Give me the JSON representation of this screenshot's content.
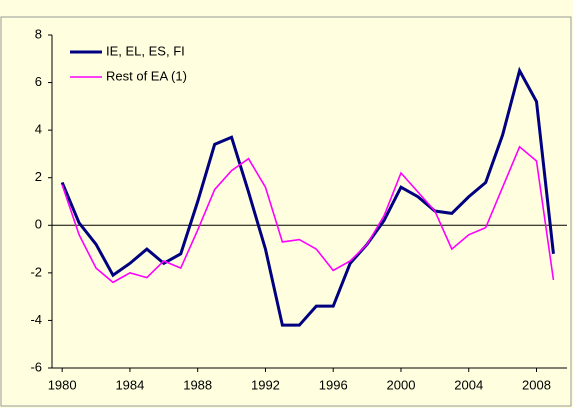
{
  "chart_data": {
    "type": "line",
    "x": [
      1980,
      1981,
      1982,
      1983,
      1984,
      1985,
      1986,
      1987,
      1988,
      1989,
      1990,
      1991,
      1992,
      1993,
      1994,
      1995,
      1996,
      1997,
      1998,
      1999,
      2000,
      2001,
      2002,
      2003,
      2004,
      2005,
      2006,
      2007,
      2008,
      2009
    ],
    "series": [
      {
        "name": "IE, EL, ES, FI",
        "color": "#000080",
        "values": [
          1.8,
          0.1,
          -0.8,
          -2.1,
          -1.6,
          -1.0,
          -1.6,
          -1.2,
          1.0,
          3.4,
          3.7,
          1.4,
          -1.0,
          -4.2,
          -4.2,
          -3.4,
          -3.4,
          -1.6,
          -0.8,
          0.2,
          1.6,
          1.2,
          0.6,
          0.5,
          1.2,
          1.8,
          3.8,
          6.5,
          5.2,
          -1.2
        ]
      },
      {
        "name": "Rest of EA (1)",
        "color": "#ff00ff",
        "values": [
          1.7,
          -0.4,
          -1.8,
          -2.4,
          -2.0,
          -2.2,
          -1.5,
          -1.8,
          -0.2,
          1.5,
          2.3,
          2.8,
          1.6,
          -0.7,
          -0.6,
          -1.0,
          -1.9,
          -1.5,
          -0.8,
          0.4,
          2.2,
          1.4,
          0.6,
          -1.0,
          -0.4,
          -0.1,
          1.6,
          3.3,
          2.7,
          -2.3
        ]
      }
    ],
    "xlim": [
      1979.4,
      2009.8
    ],
    "xticks": [
      1980,
      1984,
      1988,
      1992,
      1996,
      2000,
      2004,
      2008
    ],
    "ylim": [
      -6,
      8
    ],
    "yticks": [
      -6,
      -4,
      -2,
      0,
      2,
      4,
      6,
      8
    ],
    "legend": "upper-left"
  }
}
